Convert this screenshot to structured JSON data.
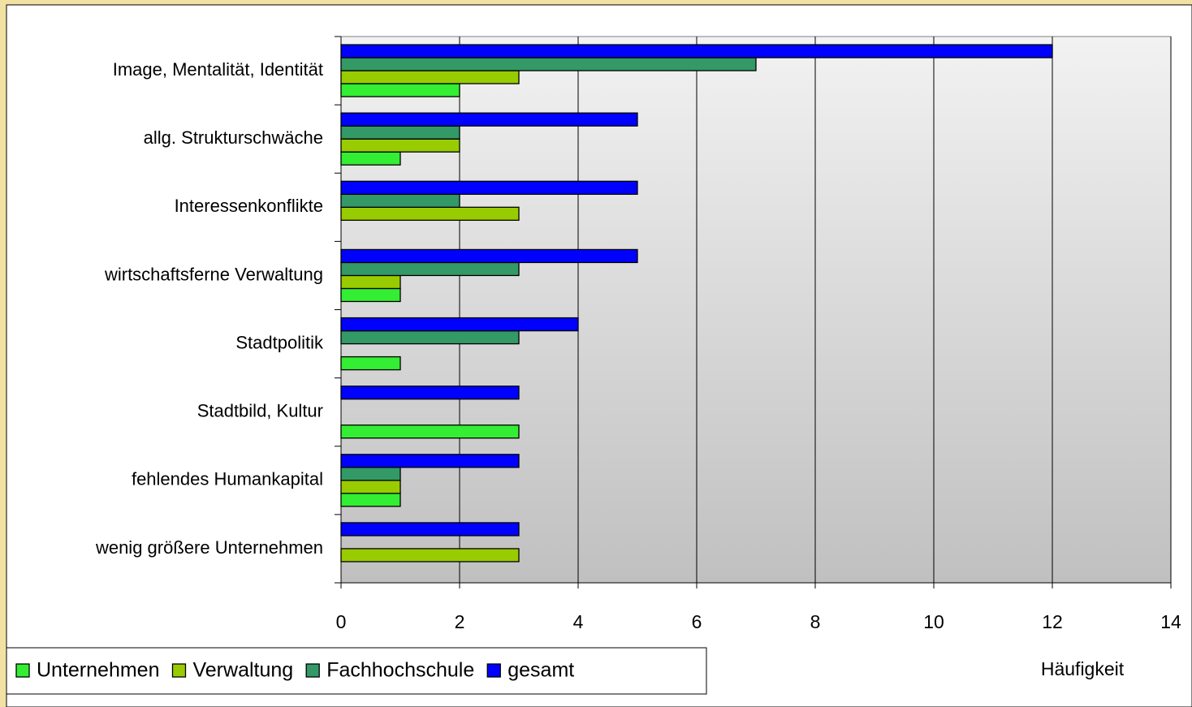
{
  "chart_data": {
    "type": "bar",
    "orientation": "horizontal",
    "xlabel": "Häufigkeit",
    "categories": [
      "Image, Mentalität, Identität",
      "allg. Strukturschwäche",
      "Interessenkonflikte",
      "wirtschaftsferne Verwaltung",
      "Stadtpolitik",
      "Stadtbild, Kultur",
      "fehlendes Humankapital",
      "wenig größere Unternehmen"
    ],
    "series": [
      {
        "name": "Unternehmen",
        "color": "#33ee33",
        "values": [
          2,
          1,
          0,
          1,
          1,
          3,
          1,
          0
        ]
      },
      {
        "name": "Verwaltung",
        "color": "#99cc00",
        "values": [
          3,
          2,
          3,
          1,
          0,
          0,
          1,
          3
        ]
      },
      {
        "name": "Fachhochschule",
        "color": "#339966",
        "values": [
          7,
          2,
          2,
          3,
          3,
          0,
          1,
          0
        ]
      },
      {
        "name": "gesamt",
        "color": "#0000ff",
        "values": [
          12,
          5,
          5,
          5,
          4,
          3,
          3,
          3
        ]
      }
    ],
    "xlim": [
      0,
      14
    ],
    "xticks": [
      0,
      2,
      4,
      6,
      8,
      10,
      12,
      14
    ],
    "grid": true,
    "legend": "bottom-left"
  }
}
